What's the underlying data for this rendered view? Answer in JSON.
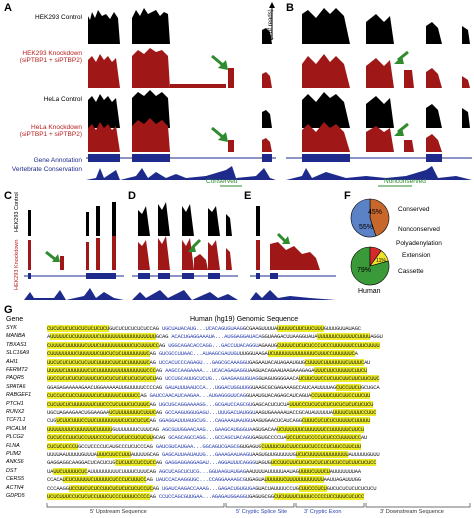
{
  "panels": {
    "a": {
      "letter": "A",
      "tracks": [
        "HEK293 Control",
        "HEK293 Knockdown\n(siPTBP1 + siPTBP2)",
        "HeLa Control",
        "HeLa Knockdown\n(siPTBP1 + siPTBP2)",
        "Gene Annotation",
        "Vertebrate Conservation"
      ],
      "axis_label": "(# of reads)",
      "conserved_label": "Conserved"
    },
    "b": {
      "letter": "B",
      "nonconserved_label": "Nonconserved"
    },
    "c": {
      "letter": "C",
      "tracks": [
        "HEK293 Control",
        "HEK293 Knockdown"
      ]
    },
    "d": {
      "letter": "D"
    },
    "e": {
      "letter": "E"
    },
    "f": {
      "letter": "F",
      "pie1": {
        "slices": [
          {
            "label": "Conserved",
            "percent": 45,
            "color": "#c8672c"
          },
          {
            "label": "Nonconserved",
            "percent": 55,
            "color": "#5b82c6"
          }
        ]
      },
      "pie2": {
        "slices": [
          {
            "label": "Cassette",
            "percent": 79,
            "color": "#3a9a3a"
          },
          {
            "label": "Extension",
            "percent": 11,
            "color": "#f0e22a"
          },
          {
            "label": "Polyadenylation",
            "percent": 10,
            "color": "#d42a2a"
          }
        ],
        "caption": "Human",
        "pct_labels": [
          "79%",
          "11%"
        ]
      }
    },
    "g": {
      "letter": "G",
      "header_gene": "Gene",
      "header_title": "Human (hg19) Genomic Sequence",
      "rows": [
        {
          "gene": "SYK",
          "seq": "CUCUCUCUCUCUCUCUCUCUGUCUCUCUCUCUCCAG  UGCUAUACAUG...UCACAGUGUAAGGCGAAGUUUUAUUUUUCUUCUUCUUUGUUUGUUAUAGC"
        },
        {
          "gene": "MANBA",
          "seq": "AUUUUUCUCUUUUUUUCUUUUUUUUUUUUUUUUUUGCAG  ACACUGAGGAAAUA...AUGGAGGAUACAGGUAAGACUUAAGGUAUAUUUUUUCUUUUUCUUUUAGGU"
        },
        {
          "gene": "TBXAS1",
          "seq": "CUUUUCUUUUUUCUUUCUUUUUUUUUUCUCUUUUCCAG  UGGCAGACACCAGG...GACCUUACAGGUAGAAUGCUUUUCUCUCUCCCUCCCUUUUUUCCUUCUUUU"
        },
        {
          "gene": "SLC16A9",
          "seq": "CUUUUUUUUCUUUUUUCUUCUCUCUUUUUUUUCAG  GUCGCCUUAAC...AUAAGCGAUUGUUUGGUAAGAUCUUUUUUUUUUUUUCUUUCCUUUUUUCA"
        },
        {
          "gene": "AHI1",
          "seq": "UUCUCUCUCUCUCUUCUUUUCUUCUCUUUUUUCAG  UCCACUCCCAGAGU...GAGCGCAAAGGUGAGAAUACAUAGAAUGUGCUUUUCUUUUUUUCUUUUCAU"
        },
        {
          "gene": "FERMT2",
          "seq": "UUUUUCUUUUUUUCUCUUUUUUUUUUUUUUUUCCCAG  AAGCCAAGAAAA...UCACAGAGAGGUAAGUACAGAAUAAGAAAGAGAUUUCUUCUUUUUCUUCU"
        },
        {
          "gene": "PAQR5",
          "seq": "UUCCUCUCUCUCUUUCUCUCUCUCUCUCUCUCUCUAG  UCCUGCAUUGCUCUG...GAAGAAGUGUAGGUAGUGGGGAACAUCUUCUUCCUCUUCUUCUUCUUCUUC"
        },
        {
          "gene": "SPATA6",
          "seq": "GGAGAGAAAAAGAACUGGAAAAAUUGUUUUUCCCCAG  GAUAUUUAAUCCA...UGGACUGGUUGGUAAGCGCGAGAAAGCCAUCAAUUUUAGCUCCUUCUGCUGCA"
        },
        {
          "gene": "RABGEF1",
          "seq": "CUCCUCCUCCUUUUUCUCUUUUUCUUUUCCAG  GAUCCAACAUCAAGAA...AUGAGGGUUCAGGUAAUGUACAGAGCAUCAGUACCUUUUCUUCUUCCUUCUU"
        },
        {
          "gene": "PTCH1",
          "seq": "CUCUUCUCUUUUUUUCUUCCCUCUUUCUCUUUCAG  UGCUGCAGGAAAAGG...GCGAUCCAGCGUGAGCACUCUCUAUUUCCCUCUCUCUCUCUCUCUCUCUCU"
        },
        {
          "gene": "RUNX2",
          "seq": "UGCUAGAAGAACUGGAAGAAUCUUUUUUUUCUUUCAG  GCCAAGUGGUGAGU...UUUGACUAUGGUAAGUGAAAAAUACCGCAUAUUUUUAUUUUCUUUUCCUUC"
        },
        {
          "gene": "TCF7L1",
          "seq": "CUGUCUUCUUUCCUUCUUUUUUUUCUCUCUCUCAG  GGAGGAUUUAUGCUG...CAGAAAUAAUGUAAGUGAACUCAUCAGGCUUUCUCUCUCUUUUUCUUUUU"
        },
        {
          "gene": "PICALM",
          "seq": "UUUUUUUUCUUUUUUCUUUUUGUUUUUUUCUUUCAG  AGCGUUGGAACAAG...GAAGCAUGGGUAAGUGACAAUCUUUUUUCUUUUUUCCUUUUUUCUUCU"
        },
        {
          "gene": "PLCG2",
          "seq": "CUCUCCCUUCUCCUUUCCCUCUCUCUCCUCUCUUGCAG  GCAGCAGCCAGG...GCCAGCUACAGUGAGUGCCCCUAUCCUCCUCCCCUCUCCCUUUUUCCAU"
        },
        {
          "gene": "FLNA",
          "seq": "CUCUCUCCCUGCCUCCCCUCAUGCCCUCUCCCAG  GAUCGUCAUGAA...GGCAGUCGAGCGGUGAGUGCUUUUCUUCUUCCUUCUCCCCUCUUCCUUCUU"
        },
        {
          "gene": "PUM2",
          "seq": "UUUUAAUUUUUGUUUAUUUCUUCCUUUAUUUUGCAG  GAGCAUUAAUAUUG...GAAAGAAUAAGUAAGUGUUGUUUUUGUCUCUUUUUUUUUUUUUAUUUUUGUUU"
        },
        {
          "gene": "ANKS6",
          "seq": "GAGGAGGCAAGGACUCACUCUGCUCUUCCUCCUCCAG  GAGGAGGAGGAGAU...AGGAUUUCAGGGUAGUGUCCUUCUUCUCUCUCUCUCUCUCCUCUUCUCUCC"
        },
        {
          "gene": "DST",
          "seq": "UAUUCUUUUUCUCAUUUUUUUUUCUUUUCUUUCAG  AGCUCAGCUCUCG...GGUAAGUAUGAGAAUUUUAUUUUUAAUAGUUUUCUUUCUAUUUUUUUAA"
        },
        {
          "gene": "CERS5",
          "seq": "CCACAUCUCUUUUUCUUUUUCUCCCUCUUUCCAG  UAUCCACAAGGUGC...CCAGGAAAAGCGUGAGUAUUUUUUCUUUUUUUUUUUUAAUUAGAUUUGG"
        },
        {
          "gene": "ACTN4",
          "seq": "CCCAAGGUCCUUCUCUCCUUCUCUCUCUCUCCUCAG  UGAUCAAGACCAAAG...GAGACUGUGUGAGUACUAUUUUCCUGCUUCCCUCUGUCUCUCUCUCUCUCU"
        },
        {
          "gene": "GDPD5",
          "seq": "UCUCUUUCCUCUCUCCUUUCUCCCUUUUCCCCCAG  CCUCCAGCGUUGAA...AGAGAUGGAGGUGAGUGCGGCUCUUUUCUUUUCCCCCUCCUUUCUCUCC"
        }
      ],
      "footer": [
        "5' Upstream Sequence",
        "5' Cryptic Splice Site",
        "3' Cryptic Exon",
        "3' Downstream Sequence"
      ]
    }
  },
  "colors": {
    "black_track": "#000000",
    "red_track": "#a01717",
    "arrow": "#2e8b2e",
    "annotation": "#1e2a8c"
  }
}
